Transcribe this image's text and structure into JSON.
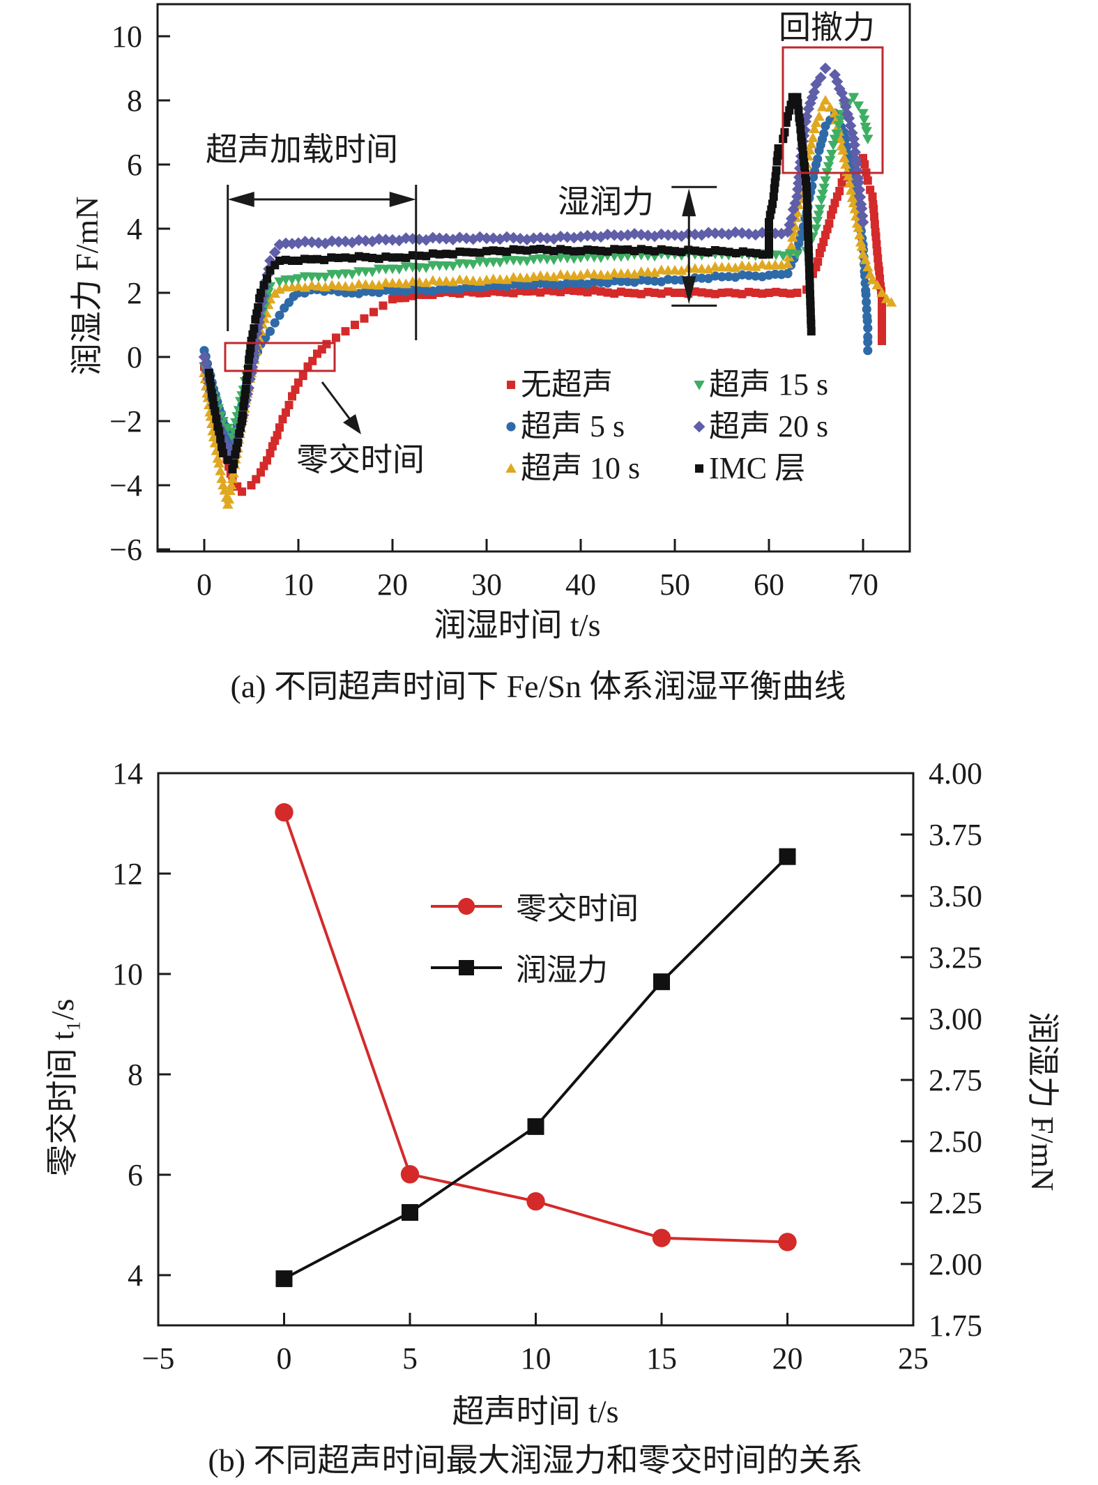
{
  "chart_data": [
    {
      "id": "a",
      "type": "scatter",
      "caption": "(a) 不同超声时间下 Fe/Sn 体系润湿平衡曲线",
      "xlabel": "润湿时间 t/s",
      "ylabel": "润湿力 F/mN",
      "xlim": [
        -5,
        75
      ],
      "ylim": [
        -6,
        11
      ],
      "xticks": [
        0,
        10,
        20,
        30,
        40,
        50,
        60,
        70
      ],
      "yticks": [
        -6,
        -4,
        -2,
        0,
        2,
        4,
        6,
        8,
        10
      ],
      "ytick_labels": [
        "−6",
        "−4",
        "−2",
        "0",
        "2",
        "4",
        "6",
        "8",
        "10"
      ],
      "grid": false,
      "legend_position": "lower-right",
      "annotations": {
        "ultrasonic_loading": "超声加载时间",
        "ultrasonic_span": [
          2.5,
          22.5
        ],
        "wetting_force": "湿润力",
        "wetting_force_range": [
          1.6,
          5.3
        ],
        "wetting_force_x": 51.5,
        "zero_cross": "零交时间",
        "zero_box": {
          "x": [
            2.5,
            14
          ],
          "y": [
            -0.4,
            0.5
          ]
        },
        "retraction": "回撤力",
        "retraction_box": {
          "x": [
            61.5,
            72
          ],
          "y": [
            5.6,
            9.6
          ]
        }
      },
      "series": [
        {
          "name": "无超声",
          "marker": "square",
          "color": "#d42a2a",
          "points": [
            [
              0,
              -0.3
            ],
            [
              1,
              -1.5
            ],
            [
              2,
              -2.8
            ],
            [
              3,
              -3.8
            ],
            [
              4,
              -4.2
            ],
            [
              5,
              -4.0
            ],
            [
              6,
              -3.6
            ],
            [
              7,
              -3.0
            ],
            [
              8,
              -2.2
            ],
            [
              9,
              -1.5
            ],
            [
              10,
              -0.8
            ],
            [
              11,
              -0.3
            ],
            [
              12,
              0.1
            ],
            [
              13,
              0.4
            ],
            [
              14,
              0.6
            ],
            [
              15,
              0.8
            ],
            [
              16,
              1.0
            ],
            [
              17,
              1.2
            ],
            [
              18,
              1.4
            ],
            [
              19,
              1.6
            ],
            [
              20,
              1.8
            ],
            [
              22,
              1.9
            ],
            [
              25,
              2.0
            ],
            [
              30,
              2.0
            ],
            [
              35,
              2.05
            ],
            [
              40,
              2.05
            ],
            [
              45,
              2.0
            ],
            [
              50,
              2.0
            ],
            [
              55,
              2.0
            ],
            [
              60,
              2.0
            ],
            [
              63,
              2.0
            ],
            [
              64,
              2.1
            ],
            [
              65,
              2.8
            ],
            [
              66,
              3.8
            ],
            [
              67,
              4.8
            ],
            [
              68,
              5.6
            ],
            [
              69,
              6.0
            ],
            [
              70,
              6.2
            ],
            [
              70.5,
              5.5
            ],
            [
              71,
              5.0
            ],
            [
              71.5,
              3.3
            ],
            [
              72,
              1.8
            ],
            [
              72,
              0.5
            ]
          ]
        },
        {
          "name": "超声 5 s",
          "marker": "circle",
          "color": "#2f6aa8",
          "points": [
            [
              0,
              0.2
            ],
            [
              1,
              -1.0
            ],
            [
              2,
              -2.0
            ],
            [
              3,
              -2.8
            ],
            [
              4,
              -1.5
            ],
            [
              5,
              -0.2
            ],
            [
              6,
              0.4
            ],
            [
              7,
              0.8
            ],
            [
              8,
              1.3
            ],
            [
              9,
              1.7
            ],
            [
              10,
              2.0
            ],
            [
              12,
              2.1
            ],
            [
              15,
              2.0
            ],
            [
              20,
              2.05
            ],
            [
              25,
              2.1
            ],
            [
              30,
              2.2
            ],
            [
              35,
              2.25
            ],
            [
              40,
              2.3
            ],
            [
              45,
              2.35
            ],
            [
              50,
              2.4
            ],
            [
              55,
              2.5
            ],
            [
              60,
              2.55
            ],
            [
              62,
              2.6
            ],
            [
              63,
              3.3
            ],
            [
              64,
              4.5
            ],
            [
              65,
              6.0
            ],
            [
              66,
              7.2
            ],
            [
              67,
              7.6
            ],
            [
              68,
              7.0
            ],
            [
              69,
              5.5
            ],
            [
              70,
              3.5
            ],
            [
              70.5,
              0.9
            ],
            [
              70.5,
              0.2
            ]
          ]
        },
        {
          "name": "超声 10 s",
          "marker": "triangle-up",
          "color": "#e0a820",
          "points": [
            [
              0,
              -0.5
            ],
            [
              1,
              -2.5
            ],
            [
              2,
              -4.0
            ],
            [
              2.5,
              -4.6
            ],
            [
              3,
              -3.8
            ],
            [
              4,
              -2.0
            ],
            [
              5,
              -0.5
            ],
            [
              6,
              0.8
            ],
            [
              7,
              1.8
            ],
            [
              8,
              2.1
            ],
            [
              10,
              2.2
            ],
            [
              15,
              2.2
            ],
            [
              20,
              2.3
            ],
            [
              25,
              2.35
            ],
            [
              30,
              2.4
            ],
            [
              35,
              2.5
            ],
            [
              40,
              2.55
            ],
            [
              45,
              2.6
            ],
            [
              50,
              2.7
            ],
            [
              55,
              2.8
            ],
            [
              60,
              2.85
            ],
            [
              62,
              2.9
            ],
            [
              63,
              4.5
            ],
            [
              64,
              6.0
            ],
            [
              65,
              7.3
            ],
            [
              66,
              8.0
            ],
            [
              67,
              7.6
            ],
            [
              68,
              6.2
            ],
            [
              69,
              4.8
            ],
            [
              70,
              3.2
            ],
            [
              71,
              2.4
            ],
            [
              72,
              2.0
            ],
            [
              73,
              1.7
            ]
          ]
        },
        {
          "name": "超声 15 s",
          "marker": "triangle-down",
          "color": "#3eae63",
          "points": [
            [
              0,
              -0.3
            ],
            [
              1,
              -1.2
            ],
            [
              2,
              -2.0
            ],
            [
              3,
              -2.5
            ],
            [
              4,
              -1.2
            ],
            [
              5,
              0.0
            ],
            [
              6,
              1.2
            ],
            [
              7,
              2.2
            ],
            [
              8,
              2.35
            ],
            [
              10,
              2.45
            ],
            [
              15,
              2.6
            ],
            [
              20,
              2.75
            ],
            [
              25,
              2.85
            ],
            [
              30,
              2.95
            ],
            [
              35,
              3.05
            ],
            [
              40,
              3.1
            ],
            [
              45,
              3.15
            ],
            [
              50,
              3.2
            ],
            [
              55,
              3.2
            ],
            [
              60,
              3.2
            ],
            [
              63,
              3.2
            ],
            [
              64,
              3.3
            ],
            [
              65,
              4.0
            ],
            [
              66,
              5.5
            ],
            [
              67,
              6.8
            ],
            [
              68,
              7.8
            ],
            [
              69,
              8.1
            ],
            [
              70,
              7.6
            ],
            [
              70.5,
              6.8
            ]
          ]
        },
        {
          "name": "超声 20 s",
          "marker": "diamond",
          "color": "#5f5ea8",
          "points": [
            [
              0,
              0.0
            ],
            [
              1,
              -1.5
            ],
            [
              2,
              -2.6
            ],
            [
              3,
              -3.2
            ],
            [
              4,
              -2.0
            ],
            [
              5,
              -0.5
            ],
            [
              6,
              1.5
            ],
            [
              7,
              3.0
            ],
            [
              8,
              3.5
            ],
            [
              10,
              3.55
            ],
            [
              15,
              3.6
            ],
            [
              20,
              3.65
            ],
            [
              25,
              3.7
            ],
            [
              30,
              3.7
            ],
            [
              35,
              3.7
            ],
            [
              40,
              3.75
            ],
            [
              45,
              3.8
            ],
            [
              50,
              3.8
            ],
            [
              55,
              3.85
            ],
            [
              60,
              3.85
            ],
            [
              62,
              3.9
            ],
            [
              63,
              5.0
            ],
            [
              63.5,
              6.5
            ],
            [
              64,
              7.5
            ],
            [
              65,
              8.5
            ],
            [
              66,
              9.0
            ],
            [
              67,
              8.8
            ],
            [
              68,
              8.0
            ],
            [
              69,
              6.8
            ],
            [
              70,
              4.2
            ]
          ]
        },
        {
          "name": "IMC 层",
          "marker": "square",
          "color": "#111111",
          "points": [
            [
              0.5,
              -0.5
            ],
            [
              1,
              -1.5
            ],
            [
              2,
              -3.0
            ],
            [
              3,
              -3.5
            ],
            [
              4,
              -2.0
            ],
            [
              5,
              0.5
            ],
            [
              6,
              2.0
            ],
            [
              7,
              2.7
            ],
            [
              8,
              3.0
            ],
            [
              10,
              3.0
            ],
            [
              12,
              3.05
            ],
            [
              15,
              3.1
            ],
            [
              20,
              3.1
            ],
            [
              25,
              3.2
            ],
            [
              30,
              3.3
            ],
            [
              35,
              3.35
            ],
            [
              40,
              3.3
            ],
            [
              45,
              3.35
            ],
            [
              50,
              3.3
            ],
            [
              55,
              3.3
            ],
            [
              58,
              3.25
            ],
            [
              60,
              3.2
            ],
            [
              60,
              4.2
            ],
            [
              60.5,
              5.0
            ],
            [
              61,
              6.5
            ],
            [
              61.5,
              6.8
            ],
            [
              62,
              7.5
            ],
            [
              62.5,
              8.1
            ],
            [
              63,
              8.1
            ],
            [
              63.5,
              6.7
            ],
            [
              64,
              5.3
            ],
            [
              64.5,
              0.8
            ]
          ]
        }
      ]
    },
    {
      "id": "b",
      "type": "line",
      "caption": "(b) 不同超声时间最大润湿力和零交时间的关系",
      "xlabel": "超声时间 t/s",
      "ylabel_left": "零交时间 t₁/s",
      "ylabel_right": "润湿力 F/mN",
      "x": [
        0,
        5,
        10,
        15,
        20
      ],
      "xlim": [
        -5,
        25
      ],
      "ylim_left": [
        3,
        14
      ],
      "ylim_right": [
        1.75,
        4.0
      ],
      "xticks": [
        -5,
        0,
        5,
        10,
        15,
        20,
        25
      ],
      "xtick_labels": [
        "−5",
        "0",
        "5",
        "10",
        "15",
        "20",
        "25"
      ],
      "yticks_left": [
        4,
        6,
        8,
        10,
        12,
        14
      ],
      "yticks_right": [
        "1.75",
        "2.00",
        "2.25",
        "2.50",
        "2.75",
        "3.00",
        "3.25",
        "3.50",
        "3.75",
        "4.00"
      ],
      "grid": false,
      "legend_position": "upper-center",
      "series": [
        {
          "name": "零交时间",
          "axis": "left",
          "marker": "circle",
          "color": "#d42a2a",
          "values": [
            13.22,
            6.01,
            5.47,
            4.74,
            4.66
          ]
        },
        {
          "name": "润湿力",
          "axis": "right",
          "marker": "square",
          "color": "#111111",
          "values": [
            1.94,
            2.21,
            2.56,
            3.15,
            3.66
          ]
        }
      ]
    }
  ]
}
